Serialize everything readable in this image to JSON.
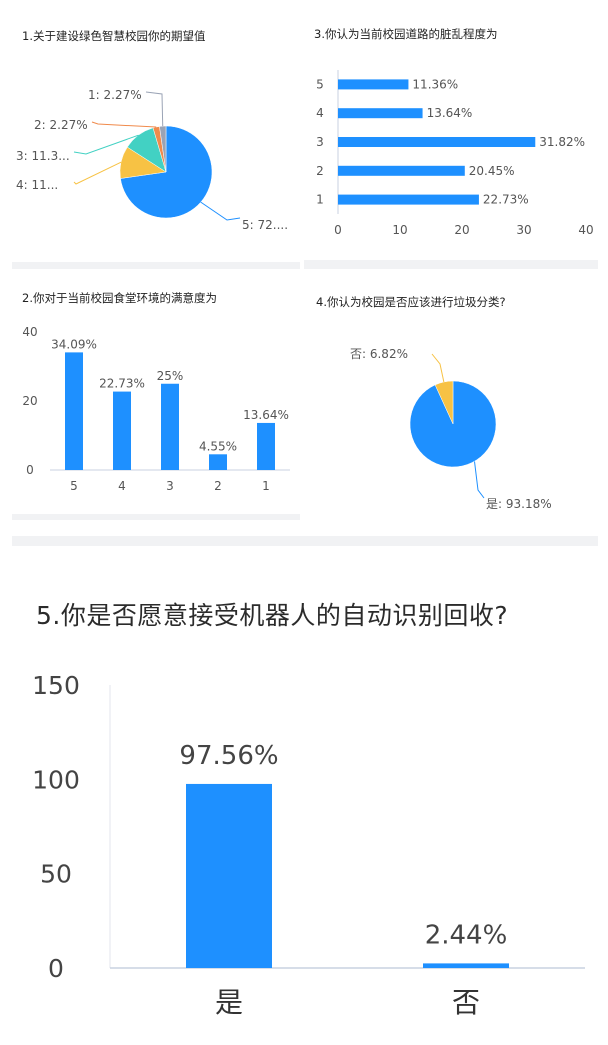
{
  "colors": {
    "blue": "#1e90ff",
    "yellow": "#f7c244",
    "teal": "#42d1c3",
    "orange": "#f08a4b",
    "axis": "#c9d2e0",
    "label": "#555555"
  },
  "charts": {
    "c1": {
      "title": "1.关于建设绿色智慧校园你的期望值"
    },
    "c2": {
      "title": "2.你对于当前校园食堂环境的满意度为"
    },
    "c3": {
      "title": "3.你认为当前校园道路的脏乱程度为"
    },
    "c4": {
      "title": "4.你认为校园是否应该进行垃圾分类?"
    },
    "c5": {
      "title": "5.你是否愿意接受机器人的自动识别回收?"
    }
  },
  "chart_data": [
    {
      "type": "pie",
      "title": "1.关于建设绿色智慧校园你的期望值",
      "slices": [
        {
          "label": "5",
          "value": 72.73,
          "display": "5: 72....",
          "color": "#1e90ff"
        },
        {
          "label": "4",
          "value": 11.36,
          "display": "4: 11...",
          "color": "#f7c244"
        },
        {
          "label": "3",
          "value": 11.36,
          "display": "3: 11.3...",
          "color": "#42d1c3"
        },
        {
          "label": "2",
          "value": 2.27,
          "display": "2: 2.27%",
          "color": "#f08a4b"
        },
        {
          "label": "1",
          "value": 2.27,
          "display": "1: 2.27%",
          "color": "#9aa3b5"
        }
      ]
    },
    {
      "type": "bar",
      "title": "2.你对于当前校园食堂环境的满意度为",
      "categories": [
        "5",
        "4",
        "3",
        "2",
        "1"
      ],
      "values": [
        34.09,
        22.73,
        25,
        4.55,
        13.64
      ],
      "labels": [
        "34.09%",
        "22.73%",
        "25%",
        "4.55%",
        "13.64%"
      ],
      "yticks": [
        "0",
        "20",
        "40"
      ],
      "ylim": [
        0,
        40
      ]
    },
    {
      "type": "bar",
      "orientation": "horizontal",
      "title": "3.你认为当前校园道路的脏乱程度为",
      "categories": [
        "5",
        "4",
        "3",
        "2",
        "1"
      ],
      "values": [
        11.36,
        13.64,
        31.82,
        20.45,
        22.73
      ],
      "labels": [
        "11.36%",
        "13.64%",
        "31.82%",
        "20.45%",
        "22.73%"
      ],
      "xticks": [
        "0",
        "10",
        "20",
        "30",
        "40"
      ],
      "xlim": [
        0,
        40
      ]
    },
    {
      "type": "pie",
      "title": "4.你认为校园是否应该进行垃圾分类?",
      "slices": [
        {
          "label": "是",
          "value": 93.18,
          "display": "是: 93.18%",
          "color": "#1e90ff"
        },
        {
          "label": "否",
          "value": 6.82,
          "display": "否: 6.82%",
          "color": "#f7c244"
        }
      ]
    },
    {
      "type": "bar",
      "title": "5.你是否愿意接受机器人的自动识别回收?",
      "categories": [
        "是",
        "否"
      ],
      "values": [
        97.56,
        2.44
      ],
      "labels": [
        "97.56%",
        "2.44%"
      ],
      "yticks": [
        "0",
        "50",
        "100",
        "150"
      ],
      "ylim": [
        0,
        150
      ]
    }
  ]
}
